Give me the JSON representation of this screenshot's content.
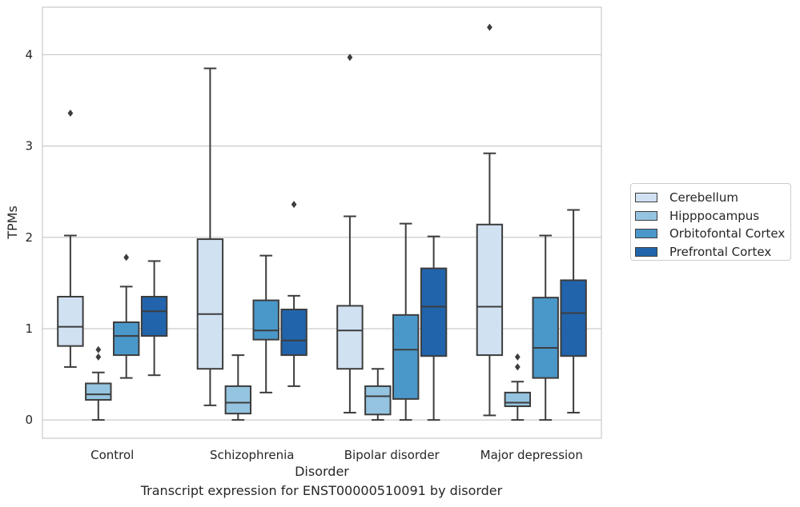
{
  "chart_data": {
    "type": "box",
    "caption": "Transcript expression for ENST00000510091 by disorder",
    "xlabel": "Disorder",
    "ylabel": "TPMs",
    "ylim": [
      -0.2,
      4.52
    ],
    "yticks": [
      "0",
      "1",
      "2",
      "3",
      "4"
    ],
    "grid": "horizontal",
    "legend_position": "right",
    "categories": [
      "Control",
      "Schizophrenia",
      "Bipolar disorder",
      "Major depression"
    ],
    "series": [
      {
        "name": "Cerebellum",
        "color": "#d0e1f2",
        "boxes": [
          {
            "whislo": 0.58,
            "q1": 0.81,
            "med": 1.02,
            "q3": 1.35,
            "whishi": 2.02,
            "fliers": [
              3.36
            ]
          },
          {
            "whislo": 0.16,
            "q1": 0.56,
            "med": 1.16,
            "q3": 1.98,
            "whishi": 3.85,
            "fliers": []
          },
          {
            "whislo": 0.08,
            "q1": 0.56,
            "med": 0.98,
            "q3": 1.25,
            "whishi": 2.23,
            "fliers": [
              3.97
            ]
          },
          {
            "whislo": 0.05,
            "q1": 0.71,
            "med": 1.24,
            "q3": 2.14,
            "whishi": 2.92,
            "fliers": [
              4.3
            ]
          }
        ]
      },
      {
        "name": "Hipppocampus",
        "color": "#94c4df",
        "boxes": [
          {
            "whislo": 0.0,
            "q1": 0.22,
            "med": 0.28,
            "q3": 0.4,
            "whishi": 0.52,
            "fliers": [
              0.69,
              0.77
            ]
          },
          {
            "whislo": 0.0,
            "q1": 0.07,
            "med": 0.19,
            "q3": 0.37,
            "whishi": 0.71,
            "fliers": []
          },
          {
            "whislo": 0.0,
            "q1": 0.06,
            "med": 0.26,
            "q3": 0.37,
            "whishi": 0.56,
            "fliers": []
          },
          {
            "whislo": 0.0,
            "q1": 0.15,
            "med": 0.19,
            "q3": 0.3,
            "whishi": 0.42,
            "fliers": [
              0.58,
              0.69
            ]
          }
        ]
      },
      {
        "name": "Orbitofontal Cortex",
        "color": "#4a98c9",
        "boxes": [
          {
            "whislo": 0.46,
            "q1": 0.71,
            "med": 0.92,
            "q3": 1.07,
            "whishi": 1.46,
            "fliers": [
              1.78
            ]
          },
          {
            "whislo": 0.3,
            "q1": 0.88,
            "med": 0.98,
            "q3": 1.31,
            "whishi": 1.8,
            "fliers": []
          },
          {
            "whislo": 0.0,
            "q1": 0.23,
            "med": 0.77,
            "q3": 1.15,
            "whishi": 2.15,
            "fliers": []
          },
          {
            "whislo": 0.0,
            "q1": 0.46,
            "med": 0.79,
            "q3": 1.34,
            "whishi": 2.02,
            "fliers": []
          }
        ]
      },
      {
        "name": "Prefrontal Cortex",
        "color": "#2164ab",
        "boxes": [
          {
            "whislo": 0.49,
            "q1": 0.92,
            "med": 1.19,
            "q3": 1.35,
            "whishi": 1.74,
            "fliers": []
          },
          {
            "whislo": 0.37,
            "q1": 0.71,
            "med": 0.87,
            "q3": 1.21,
            "whishi": 1.36,
            "fliers": [
              2.36
            ]
          },
          {
            "whislo": 0.0,
            "q1": 0.7,
            "med": 1.24,
            "q3": 1.66,
            "whishi": 2.01,
            "fliers": []
          },
          {
            "whislo": 0.08,
            "q1": 0.7,
            "med": 1.17,
            "q3": 1.53,
            "whishi": 2.3,
            "fliers": []
          }
        ]
      }
    ]
  }
}
